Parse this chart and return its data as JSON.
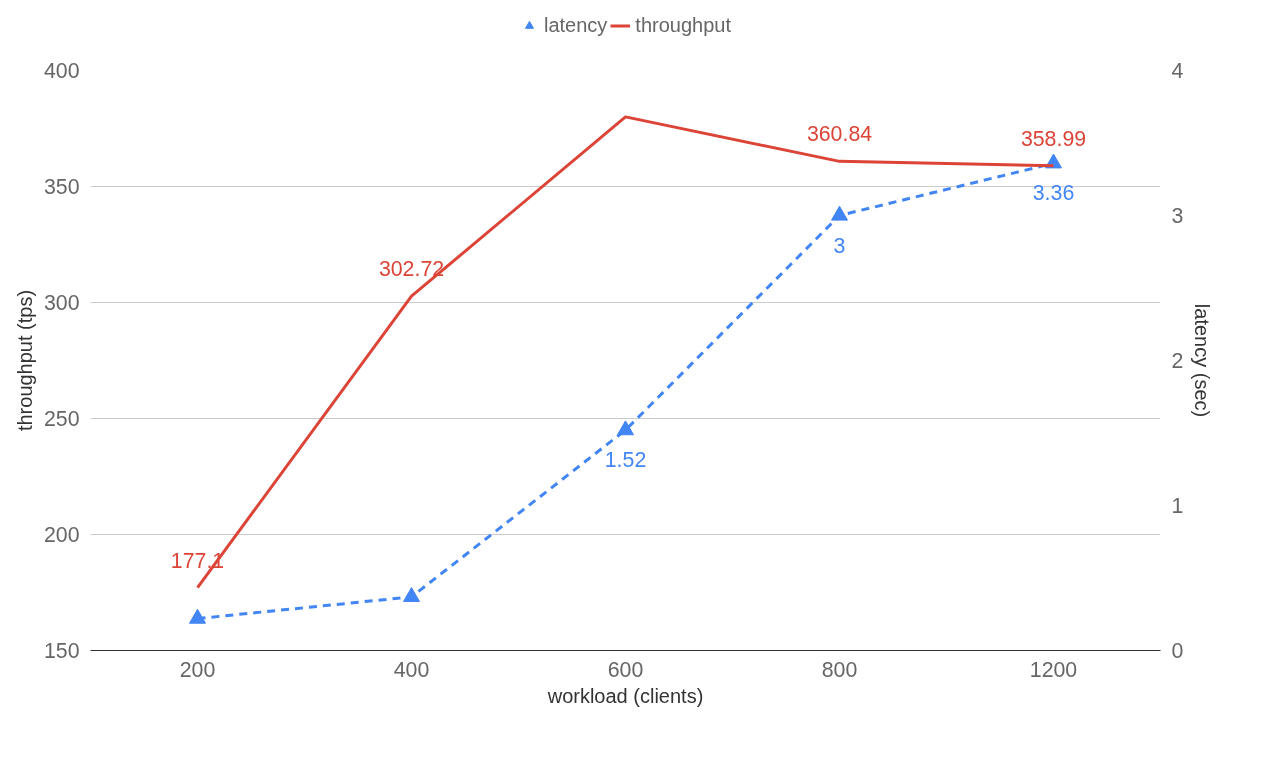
{
  "chart_data": {
    "type": "line",
    "xlabel": "workload (clients)",
    "ylabel": "throughput (tps)",
    "y2label": "latency (sec)",
    "categories": [
      "200",
      "400",
      "600",
      "800",
      "1200"
    ],
    "series": [
      {
        "name": "latency",
        "color": "#4285f4",
        "axis": "y2",
        "marker": "triangle",
        "line_style": "dashed",
        "values": [
          0.22,
          0.37,
          1.52,
          3,
          3.36
        ],
        "value_labels": [
          null,
          null,
          "1.52",
          "3",
          "3.36"
        ]
      },
      {
        "name": "throughput",
        "color": "#db4437",
        "marker": "none",
        "line_style": "solid",
        "values": [
          177.1,
          302.72,
          380,
          360.84,
          358.99
        ],
        "value_labels": [
          "177.1",
          "302.72",
          null,
          "360.84",
          "358.99"
        ]
      }
    ],
    "ylim": [
      150,
      400
    ],
    "yticks": [
      150,
      200,
      250,
      300,
      350,
      400
    ],
    "y2lim": [
      0,
      4
    ],
    "y2ticks": [
      0,
      1,
      2,
      3,
      4
    ],
    "grid": "y",
    "legend": "top"
  }
}
